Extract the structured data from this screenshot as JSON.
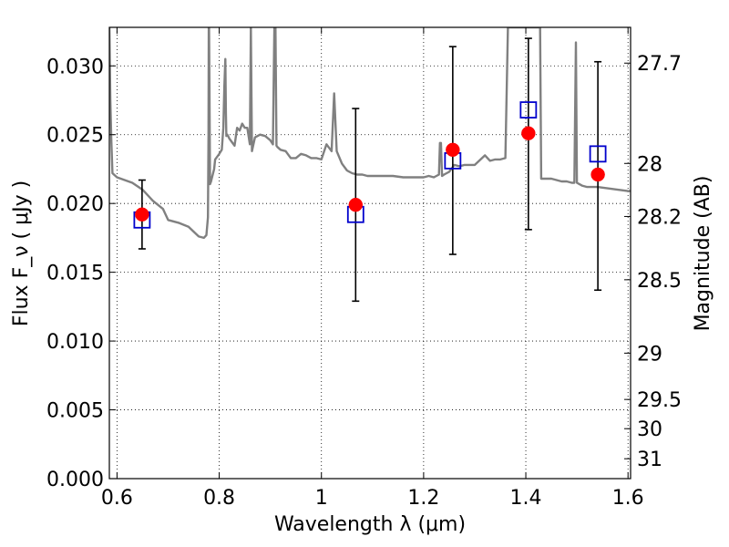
{
  "chart_data": {
    "type": "scatter",
    "xlabel": "Wavelength  λ (μm)",
    "ylabel": "Flux  F_ν  ( μJy )",
    "ylabel_right": "Magnitude (AB)",
    "xlim": [
      0.585,
      1.605
    ],
    "ylim": [
      0.0,
      0.0328
    ],
    "grid": true,
    "x_ticks": [
      {
        "value": 0.6,
        "label": "0.6"
      },
      {
        "value": 0.8,
        "label": "0.8"
      },
      {
        "value": 1.0,
        "label": "1"
      },
      {
        "value": 1.2,
        "label": "1.2"
      },
      {
        "value": 1.4,
        "label": "1.4"
      },
      {
        "value": 1.6,
        "label": "1.6"
      }
    ],
    "y_ticks": [
      {
        "value": 0.0,
        "label": "0.000"
      },
      {
        "value": 0.005,
        "label": "0.005"
      },
      {
        "value": 0.01,
        "label": "0.010"
      },
      {
        "value": 0.015,
        "label": "0.015"
      },
      {
        "value": 0.02,
        "label": "0.020"
      },
      {
        "value": 0.025,
        "label": "0.025"
      },
      {
        "value": 0.03,
        "label": "0.030"
      }
    ],
    "y_right_ticks": [
      {
        "mag": 27.7,
        "label": "27.7"
      },
      {
        "mag": 28,
        "label": "28"
      },
      {
        "mag": 28.2,
        "label": "28.2"
      },
      {
        "mag": 28.5,
        "label": "28.5"
      },
      {
        "mag": 29,
        "label": "29"
      },
      {
        "mag": 29.5,
        "label": "29.5"
      },
      {
        "mag": 30,
        "label": "30"
      },
      {
        "mag": 31,
        "label": "31"
      }
    ],
    "series": [
      {
        "marker": "open-square",
        "color": "#0000cc",
        "x": [
          0.649,
          1.067,
          1.257,
          1.405,
          1.541
        ],
        "y": [
          0.0188,
          0.0192,
          0.0231,
          0.0268,
          0.0236
        ]
      },
      {
        "marker": "filled-circle",
        "color": "#ff0000",
        "x": [
          0.649,
          1.067,
          1.257,
          1.405,
          1.541
        ],
        "y": [
          0.0192,
          0.0199,
          0.0239,
          0.0251,
          0.0221
        ],
        "yerr_low": [
          0.0167,
          0.0129,
          0.0163,
          0.0181,
          0.0137
        ],
        "yerr_high": [
          0.0217,
          0.0269,
          0.0314,
          0.032,
          0.0303
        ]
      },
      {
        "line": "model-spectrum",
        "color": "#808080",
        "x": [
          0.585,
          0.587,
          0.589,
          0.591,
          0.6,
          0.63,
          0.65,
          0.67,
          0.69,
          0.7,
          0.72,
          0.74,
          0.76,
          0.77,
          0.775,
          0.778,
          0.779,
          0.7795,
          0.78,
          0.781,
          0.782,
          0.784,
          0.786,
          0.79,
          0.792,
          0.796,
          0.8,
          0.805,
          0.808,
          0.81,
          0.812,
          0.813,
          0.814,
          0.816,
          0.82,
          0.83,
          0.835,
          0.84,
          0.845,
          0.85,
          0.855,
          0.86,
          0.862,
          0.864,
          0.87,
          0.88,
          0.89,
          0.9,
          0.905,
          0.908,
          0.91,
          0.912,
          0.914,
          0.92,
          0.93,
          0.94,
          0.95,
          0.96,
          0.97,
          0.98,
          0.99,
          1.0,
          1.01,
          1.02,
          1.025,
          1.03,
          1.04,
          1.05,
          1.06,
          1.07,
          1.08,
          1.09,
          1.1,
          1.12,
          1.14,
          1.16,
          1.18,
          1.2,
          1.21,
          1.22,
          1.23,
          1.232,
          1.234,
          1.236,
          1.24,
          1.25,
          1.26,
          1.27,
          1.28,
          1.29,
          1.3,
          1.32,
          1.33,
          1.34,
          1.35,
          1.36,
          1.365,
          1.366,
          1.367,
          1.37,
          1.38,
          1.39,
          1.4,
          1.41,
          1.42,
          1.428,
          1.43,
          1.44,
          1.45,
          1.46,
          1.47,
          1.48,
          1.49,
          1.495,
          1.498,
          1.5,
          1.51,
          1.52,
          1.54,
          1.56,
          1.58,
          1.6,
          1.605
        ],
        "y": [
          0.0328,
          0.0275,
          0.0245,
          0.0222,
          0.0219,
          0.0215,
          0.021,
          0.0202,
          0.0196,
          0.0188,
          0.0186,
          0.0183,
          0.0176,
          0.0175,
          0.0177,
          0.019,
          0.025,
          0.0328,
          0.0328,
          0.028,
          0.0214,
          0.0216,
          0.0219,
          0.0225,
          0.0232,
          0.0234,
          0.0236,
          0.0239,
          0.0255,
          0.0285,
          0.0305,
          0.0266,
          0.0249,
          0.025,
          0.0247,
          0.0242,
          0.0255,
          0.0253,
          0.0258,
          0.0255,
          0.0255,
          0.0243,
          0.0328,
          0.0238,
          0.0248,
          0.025,
          0.0249,
          0.0246,
          0.0243,
          0.0328,
          0.0328,
          0.0242,
          0.0241,
          0.0239,
          0.0238,
          0.0233,
          0.0233,
          0.0236,
          0.0235,
          0.0233,
          0.0233,
          0.0232,
          0.0243,
          0.0238,
          0.028,
          0.0238,
          0.0229,
          0.0224,
          0.0222,
          0.0221,
          0.0221,
          0.022,
          0.022,
          0.022,
          0.022,
          0.0219,
          0.0219,
          0.0219,
          0.022,
          0.0219,
          0.0221,
          0.0244,
          0.0244,
          0.022,
          0.0221,
          0.0223,
          0.0228,
          0.0227,
          0.0228,
          0.0228,
          0.0228,
          0.0235,
          0.0231,
          0.0232,
          0.0232,
          0.0233,
          0.0328,
          0.0328,
          0.0328,
          0.0328,
          0.0328,
          0.0328,
          0.0328,
          0.0328,
          0.0328,
          0.0328,
          0.0218,
          0.0218,
          0.0218,
          0.0217,
          0.0216,
          0.0216,
          0.0215,
          0.0215,
          0.0317,
          0.0215,
          0.0213,
          0.0212,
          0.0212,
          0.0211,
          0.021,
          0.0209,
          0.0209
        ]
      }
    ]
  }
}
